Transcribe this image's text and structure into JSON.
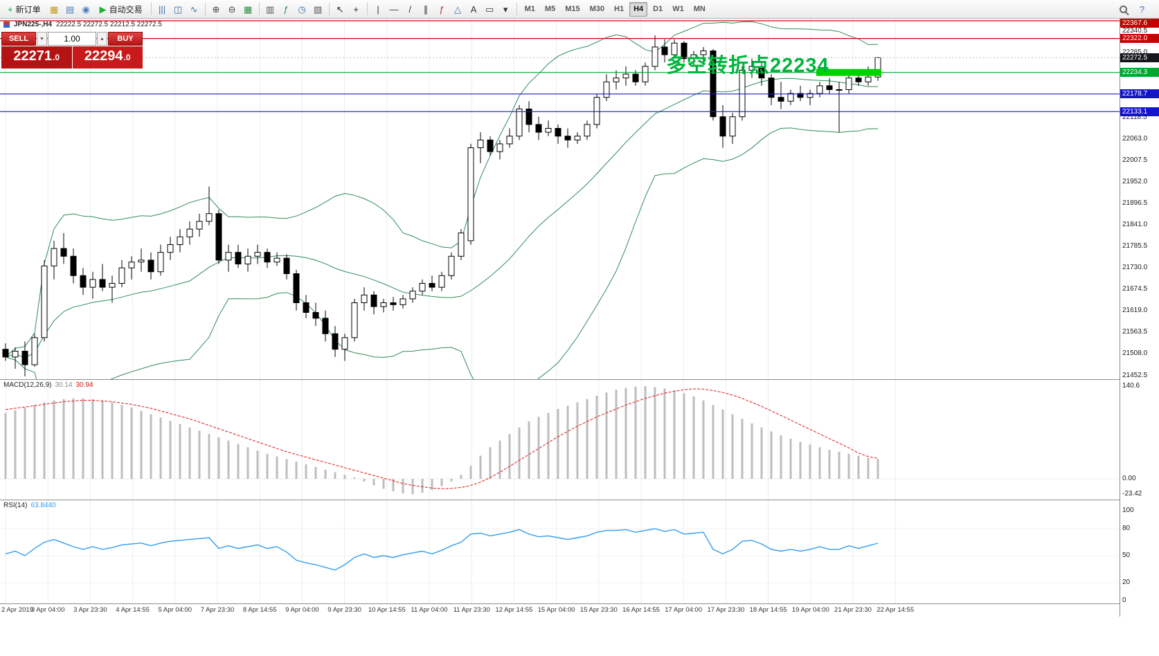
{
  "toolbar": {
    "groups": [
      {
        "items": [
          {
            "name": "new-order-button",
            "glyph": "+",
            "glyph_color": "#1a9c3e",
            "label": "新订单"
          },
          {
            "name": "chart-window-icon",
            "glyph": "▦",
            "glyph_color": "#c79a1e"
          },
          {
            "name": "profiles-icon",
            "glyph": "▤",
            "glyph_color": "#4a7ebb"
          },
          {
            "name": "sound-alert-icon",
            "glyph": "◉",
            "glyph_color": "#4a7ebb"
          },
          {
            "name": "autotrading-button",
            "glyph": "▶",
            "glyph_color": "#1fae2f",
            "label": "自动交易"
          }
        ]
      },
      {
        "items": [
          {
            "name": "bar-chart-icon",
            "glyph": "|||",
            "glyph_color": "#3a6ea5"
          },
          {
            "name": "candlestick-chart-icon",
            "glyph": "◫",
            "glyph_color": "#3a6ea5"
          },
          {
            "name": "line-chart-icon",
            "glyph": "∿",
            "glyph_color": "#3a6ea5"
          }
        ]
      },
      {
        "items": [
          {
            "name": "zoom-in-icon",
            "glyph": "⊕",
            "glyph_color": "#454545"
          },
          {
            "name": "zoom-out-icon",
            "glyph": "⊖",
            "glyph_color": "#454545"
          },
          {
            "name": "tile-grid-icon",
            "glyph": "▦",
            "glyph_color": "#2e8b46"
          }
        ]
      },
      {
        "items": [
          {
            "name": "chart-shift-icon",
            "glyph": "▥",
            "glyph_color": "#555555"
          },
          {
            "name": "indicators-icon",
            "glyph": "ƒ",
            "glyph_color": "#2e8b46"
          },
          {
            "name": "periods-icon",
            "glyph": "◷",
            "glyph_color": "#3a6ea5"
          },
          {
            "name": "templates-icon",
            "glyph": "▧",
            "glyph_color": "#555555"
          }
        ]
      },
      {
        "items": [
          {
            "name": "cursor-icon",
            "glyph": "↖",
            "glyph_color": "#222222"
          },
          {
            "name": "crosshair-icon",
            "glyph": "+",
            "glyph_color": "#222222"
          }
        ]
      },
      {
        "items": [
          {
            "name": "vertical-line-icon",
            "glyph": "|",
            "glyph_color": "#333333"
          },
          {
            "name": "horizontal-line-icon",
            "glyph": "—",
            "glyph_color": "#333333"
          },
          {
            "name": "trendline-icon",
            "glyph": "/",
            "glyph_color": "#333333"
          },
          {
            "name": "equidistant-channel-icon",
            "glyph": "∥",
            "glyph_color": "#333333"
          },
          {
            "name": "fibonacci-icon",
            "glyph": "ƒ",
            "glyph_color": "#b03030"
          },
          {
            "name": "shapes-icon",
            "glyph": "△",
            "glyph_color": "#3a6ea5"
          },
          {
            "name": "text-icon",
            "glyph": "A",
            "glyph_color": "#333333"
          },
          {
            "name": "text-label-icon",
            "glyph": "▭",
            "glyph_color": "#333333"
          },
          {
            "name": "arrows-dropdown-icon",
            "glyph": "▾",
            "glyph_color": "#333333"
          }
        ]
      },
      {
        "items": [
          {
            "name": "timeframe-m1",
            "label": "M1",
            "tf": true
          },
          {
            "name": "timeframe-m5",
            "label": "M5",
            "tf": true
          },
          {
            "name": "timeframe-m15",
            "label": "M15",
            "tf": true
          },
          {
            "name": "timeframe-m30",
            "label": "M30",
            "tf": true
          },
          {
            "name": "timeframe-h1",
            "label": "H1",
            "tf": true
          },
          {
            "name": "timeframe-h4",
            "label": "H4",
            "tf": true,
            "active": true
          },
          {
            "name": "timeframe-d1",
            "label": "D1",
            "tf": true
          },
          {
            "name": "timeframe-w1",
            "label": "W1",
            "tf": true
          },
          {
            "name": "timeframe-mn",
            "label": "MN",
            "tf": true
          }
        ]
      }
    ],
    "right_items": [
      {
        "name": "search-icon",
        "css": "mag"
      },
      {
        "name": "help-icon",
        "glyph": "?",
        "glyph_color": "#3a6ea5"
      }
    ]
  },
  "icons": {
    "caret_down": "▼",
    "caret_up": "▲"
  },
  "chart_title": {
    "symbol": "JPN225-,H4",
    "ohlc": "22222.5 22272.5 22212.5 22272.5"
  },
  "trade_panel": {
    "sell_label": "SELL",
    "buy_label": "BUY",
    "volume": "1.00",
    "sell_main": "22271",
    "sell_frac": ".0",
    "buy_main": "22294",
    "buy_frac": ".0"
  },
  "annotation": {
    "text": "多空转折点22234",
    "color": "#00b43c"
  },
  "panes": {
    "macd_label": {
      "name": "MACD(12,26,9)",
      "main": "30.14",
      "signal": "30.94"
    },
    "rsi_label": {
      "name": "RSI(14)",
      "value": "63.8440"
    }
  },
  "chart_data": {
    "type": "candlestick",
    "symbol": "JPN225-",
    "timeframe": "H4",
    "title": "JPN225-,H4 22222.5 22272.5 22212.5 22272.5",
    "last_bar_ohlc": [
      22222.5,
      22272.5,
      22212.5,
      22272.5
    ],
    "bid_line_price": 22272.5,
    "price_grid": [
      22340.5,
      22285.0,
      22229.5,
      22174.0,
      22118.5,
      22063.0,
      22007.5,
      21952.0,
      21896.5,
      21841.0,
      21785.5,
      21730.0,
      21674.5,
      21619.0,
      21563.5,
      21508.0,
      21452.5
    ],
    "scale_markers": [
      {
        "label": "22367.6",
        "price": 22367.6,
        "bg": "#c40000"
      },
      {
        "label": "22322.0",
        "price": 22322.0,
        "bg": "#c40000"
      },
      {
        "label": "22272.5",
        "price": 22272.5,
        "bg": "#14161c"
      },
      {
        "label": "22234.3",
        "price": 22234.3,
        "bg": "#00a62e"
      },
      {
        "label": "22178.7",
        "price": 22178.7,
        "bg": "#1515c8"
      },
      {
        "label": "22133.1",
        "price": 22133.1,
        "bg": "#1515c8"
      }
    ],
    "hlines": [
      {
        "price": 22367.6,
        "color": "#cc0000"
      },
      {
        "price": 22322.0,
        "color": "#cc0000"
      },
      {
        "price": 22234.3,
        "color": "#00a62e"
      },
      {
        "price": 22178.7,
        "color": "#1a1acc"
      },
      {
        "price": 22133.1,
        "color": "#1a1acc"
      }
    ],
    "pivot_zone": {
      "price": 22234.3,
      "from_bar": 84,
      "to_bar": 90,
      "color": "#00d200"
    },
    "bollinger": {
      "period": 20,
      "deviation": 2,
      "color": "#2E8B57"
    },
    "candles": [
      [
        21520,
        21535,
        21490,
        21500
      ],
      [
        21500,
        21525,
        21470,
        21515
      ],
      [
        21515,
        21540,
        21450,
        21480
      ],
      [
        21480,
        21560,
        21475,
        21550
      ],
      [
        21550,
        21750,
        21540,
        21735
      ],
      [
        21735,
        21800,
        21700,
        21780
      ],
      [
        21780,
        21820,
        21740,
        21760
      ],
      [
        21760,
        21780,
        21690,
        21710
      ],
      [
        21710,
        21730,
        21660,
        21680
      ],
      [
        21680,
        21720,
        21650,
        21700
      ],
      [
        21700,
        21740,
        21670,
        21680
      ],
      [
        21680,
        21710,
        21640,
        21690
      ],
      [
        21690,
        21750,
        21680,
        21730
      ],
      [
        21730,
        21760,
        21700,
        21745
      ],
      [
        21745,
        21780,
        21720,
        21750
      ],
      [
        21750,
        21770,
        21700,
        21720
      ],
      [
        21720,
        21790,
        21710,
        21770
      ],
      [
        21770,
        21810,
        21750,
        21790
      ],
      [
        21790,
        21830,
        21770,
        21810
      ],
      [
        21810,
        21850,
        21790,
        21830
      ],
      [
        21830,
        21870,
        21810,
        21850
      ],
      [
        21850,
        21940,
        21840,
        21870
      ],
      [
        21870,
        21880,
        21740,
        21750
      ],
      [
        21750,
        21790,
        21720,
        21770
      ],
      [
        21770,
        21790,
        21730,
        21740
      ],
      [
        21740,
        21780,
        21720,
        21760
      ],
      [
        21760,
        21790,
        21740,
        21770
      ],
      [
        21770,
        21780,
        21730,
        21745
      ],
      [
        21745,
        21770,
        21735,
        21755
      ],
      [
        21755,
        21765,
        21700,
        21715
      ],
      [
        21715,
        21725,
        21620,
        21640
      ],
      [
        21640,
        21660,
        21600,
        21615
      ],
      [
        21615,
        21640,
        21580,
        21600
      ],
      [
        21600,
        21620,
        21540,
        21560
      ],
      [
        21560,
        21580,
        21500,
        21520
      ],
      [
        21520,
        21560,
        21490,
        21550
      ],
      [
        21550,
        21650,
        21540,
        21640
      ],
      [
        21640,
        21680,
        21620,
        21660
      ],
      [
        21660,
        21670,
        21610,
        21630
      ],
      [
        21630,
        21650,
        21615,
        21640
      ],
      [
        21640,
        21655,
        21620,
        21635
      ],
      [
        21635,
        21660,
        21625,
        21650
      ],
      [
        21650,
        21680,
        21640,
        21670
      ],
      [
        21670,
        21700,
        21660,
        21690
      ],
      [
        21690,
        21710,
        21670,
        21680
      ],
      [
        21680,
        21720,
        21670,
        21710
      ],
      [
        21710,
        21770,
        21700,
        21760
      ],
      [
        21760,
        21830,
        21750,
        21820
      ],
      [
        21800,
        22050,
        21790,
        22040
      ],
      [
        22040,
        22080,
        22000,
        22060
      ],
      [
        22060,
        22070,
        22020,
        22030
      ],
      [
        22030,
        22060,
        22010,
        22050
      ],
      [
        22050,
        22090,
        22040,
        22070
      ],
      [
        22070,
        22150,
        22060,
        22140
      ],
      [
        22140,
        22160,
        22080,
        22100
      ],
      [
        22100,
        22120,
        22060,
        22080
      ],
      [
        22080,
        22110,
        22070,
        22090
      ],
      [
        22090,
        22100,
        22050,
        22070
      ],
      [
        22070,
        22090,
        22040,
        22060
      ],
      [
        22060,
        22080,
        22050,
        22070
      ],
      [
        22070,
        22110,
        22060,
        22100
      ],
      [
        22100,
        22180,
        22090,
        22170
      ],
      [
        22170,
        22230,
        22160,
        22210
      ],
      [
        22210,
        22240,
        22190,
        22220
      ],
      [
        22220,
        22250,
        22200,
        22230
      ],
      [
        22230,
        22240,
        22200,
        22210
      ],
      [
        22210,
        22260,
        22200,
        22250
      ],
      [
        22250,
        22330,
        22240,
        22300
      ],
      [
        22300,
        22320,
        22260,
        22280
      ],
      [
        22280,
        22320,
        22270,
        22310
      ],
      [
        22310,
        22315,
        22260,
        22270
      ],
      [
        22270,
        22290,
        22250,
        22280
      ],
      [
        22280,
        22300,
        22260,
        22290
      ],
      [
        22290,
        22295,
        22110,
        22120
      ],
      [
        22120,
        22150,
        22040,
        22070
      ],
      [
        22070,
        22130,
        22050,
        22120
      ],
      [
        22120,
        22250,
        22110,
        22240
      ],
      [
        22240,
        22270,
        22220,
        22250
      ],
      [
        22250,
        22260,
        22200,
        22220
      ],
      [
        22220,
        22230,
        22150,
        22170
      ],
      [
        22170,
        22210,
        22140,
        22160
      ],
      [
        22160,
        22190,
        22150,
        22180
      ],
      [
        22180,
        22200,
        22160,
        22170
      ],
      [
        22170,
        22190,
        22150,
        22180
      ],
      [
        22180,
        22210,
        22170,
        22200
      ],
      [
        22200,
        22220,
        22180,
        22190
      ],
      [
        22190,
        22210,
        22080,
        22190
      ],
      [
        22190,
        22230,
        22180,
        22220
      ],
      [
        22220,
        22240,
        22200,
        22210
      ],
      [
        22210,
        22250,
        22200,
        22222.5
      ],
      [
        22222.5,
        22272.5,
        22212.5,
        22272.5
      ]
    ],
    "macd": {
      "label": "MACD(12,26,9)",
      "main_last": 30.14,
      "signal_last": 30.94,
      "scale_labels": [
        {
          "text": "140.6",
          "v": 140.6
        },
        {
          "text": "0.00",
          "v": 0
        },
        {
          "text": "-23.42",
          "v": -23.42
        }
      ],
      "histogram": [
        100,
        104,
        108,
        112,
        116,
        119,
        121,
        122,
        122,
        121,
        119,
        116,
        112,
        108,
        103,
        98,
        93,
        88,
        83,
        78,
        73,
        68,
        63,
        58,
        53,
        48,
        43,
        38,
        34,
        30,
        26,
        22,
        18,
        14,
        10,
        6,
        2,
        -4,
        -10,
        -15,
        -19,
        -22,
        -23.42,
        -21,
        -17,
        -11,
        -4,
        6,
        20,
        35,
        48,
        58,
        68,
        78,
        87,
        94,
        100,
        106,
        111,
        116,
        121,
        126,
        131,
        135,
        138,
        140,
        140.6,
        139,
        137,
        134,
        130,
        125,
        119,
        112,
        105,
        98,
        91,
        84,
        78,
        72,
        66,
        61,
        56,
        52,
        48,
        44,
        41,
        38,
        35,
        32,
        30.14
      ],
      "signal": [
        105,
        107,
        109,
        111,
        113,
        115,
        117,
        118,
        119,
        119,
        118,
        117,
        115,
        113,
        110,
        107,
        103,
        99,
        95,
        91,
        86,
        81,
        76,
        71,
        66,
        61,
        56,
        51,
        46,
        41,
        37,
        33,
        29,
        25,
        21,
        17,
        13,
        9,
        5,
        1,
        -3,
        -7,
        -10,
        -12,
        -14,
        -15,
        -14.5,
        -13,
        -10,
        -5,
        2,
        10,
        19,
        28,
        37,
        46,
        55,
        64,
        72,
        80,
        87,
        94,
        100,
        106,
        112,
        117,
        122,
        126,
        130,
        133,
        135,
        136.5,
        136,
        134,
        131,
        127,
        122,
        116,
        110,
        103,
        96,
        89,
        82,
        75,
        68,
        61,
        54,
        47,
        39,
        34,
        30.94
      ]
    },
    "rsi": {
      "label": "RSI(14)",
      "last": 63.844,
      "levels": [
        80,
        50,
        20
      ],
      "scale_labels": [
        {
          "text": "100",
          "v": 100
        },
        {
          "text": "80",
          "v": 80
        },
        {
          "text": "50",
          "v": 50
        },
        {
          "text": "20",
          "v": 20
        },
        {
          "text": "0",
          "v": 0
        }
      ],
      "values": [
        52,
        55,
        50,
        58,
        65,
        68,
        64,
        60,
        57,
        60,
        57,
        59,
        62,
        63,
        64,
        61,
        64,
        66,
        67,
        68,
        69,
        70,
        58,
        61,
        58,
        60,
        62,
        58,
        60,
        54,
        45,
        42,
        40,
        37,
        34,
        40,
        48,
        52,
        48,
        50,
        48,
        51,
        53,
        55,
        52,
        56,
        61,
        65,
        74,
        75,
        72,
        74,
        76,
        79,
        74,
        71,
        72,
        70,
        68,
        70,
        72,
        76,
        78,
        78,
        79,
        76,
        78,
        80,
        77,
        79,
        74,
        75,
        76,
        57,
        52,
        57,
        66,
        67,
        63,
        57,
        55,
        57,
        55,
        57,
        60,
        57,
        57,
        61,
        58,
        61,
        63.84
      ]
    },
    "time_labels": [
      "2 Apr 2019",
      "3 Apr 04:00",
      "3 Apr 23:30",
      "4 Apr 14:55",
      "5 Apr 04:00",
      "7 Apr 23:30",
      "8 Apr 14:55",
      "9 Apr 04:00",
      "9 Apr 23:30",
      "10 Apr 14:55",
      "11 Apr 04:00",
      "11 Apr 23:30",
      "12 Apr 14:55",
      "15 Apr 04:00",
      "15 Apr 23:30",
      "16 Apr 14:55",
      "17 Apr 04:00",
      "17 Apr 23:30",
      "18 Apr 14:55",
      "19 Apr 04:00",
      "21 Apr 23:30",
      "22 Apr 14:55"
    ]
  }
}
